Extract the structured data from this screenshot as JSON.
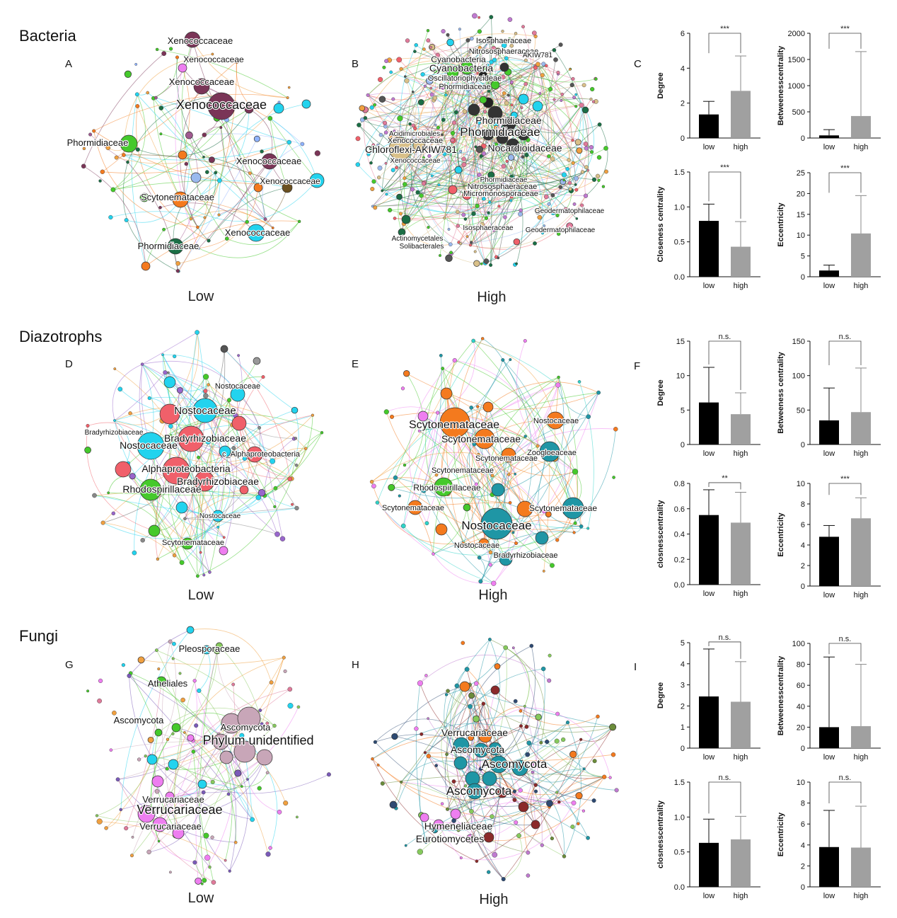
{
  "sections": [
    {
      "id": "bacteria",
      "title": "Bacteria"
    },
    {
      "id": "diazotrophs",
      "title": "Diazotrophs"
    },
    {
      "id": "fungi",
      "title": "Fungi"
    }
  ],
  "colors": {
    "low_bar": "#000000",
    "high_bar": "#a0a0a0",
    "xeno": "#7a3557",
    "cyan": "#22d3ee",
    "orange": "#f47a1e",
    "green": "#45c92b",
    "darkgreen": "#1b6e45",
    "salmon": "#f0606a",
    "teal": "#1f96a5",
    "mauve": "#c8a6b8",
    "violet": "#ee7ef0"
  },
  "networks": [
    {
      "id": "A",
      "letter": "A",
      "caption": "Low",
      "labels": [
        "Xenococcaceae",
        "Xenococcaceae",
        "Xenococcaceae",
        "Xenococcaceae",
        "Phormidiaceae",
        "Xenococcaceae",
        "Xenococcaceae",
        "Scytonemataceae",
        "Xenococcaceae",
        "Phormidiaceae"
      ]
    },
    {
      "id": "B",
      "letter": "B",
      "caption": "High",
      "labels": [
        "Isosphaeraceae",
        "Nitrososphaeraceae",
        "AKIW781",
        "Cyanobacteria",
        "Cyanobacteria",
        "Oscillatoriophycideae",
        "Phormidiaceae",
        "Phormidiaceae",
        "Phormidiaceae",
        "Nocardioidaceae",
        "Acidimicrobiales",
        "Xenococcaceae",
        "Chloroflexi-AKIW781",
        "Xenococcaceae",
        "Phormidiaceae",
        "Nitrososphaeraceae",
        "Micromonosporaceae",
        "Geodermatophilaceae",
        "Geodermatophilaceae",
        "Isosphaeraceae",
        "Actinomycetales",
        "Solibacterales"
      ]
    },
    {
      "id": "D",
      "letter": "D",
      "caption": "Low",
      "labels": [
        "Nostocaceae",
        "Nostocaceae",
        "Bradyrhizobiaceae",
        "Bradyrhizobiaceae",
        "Nostocaceae",
        "c_Alphaproteobacteria",
        "Alphaproteobacteria",
        "Bradyrhizobiaceae",
        "Rhodospirillaceae",
        "Nostocaceae",
        "Scytonemataceae"
      ]
    },
    {
      "id": "E",
      "letter": "E",
      "caption": "High",
      "labels": [
        "Scytonemataceae",
        "Scytonemataceae",
        "Nostocaceae",
        "Scytonemataceae",
        "Zoogloeaceae",
        "Scytonemataceae",
        "Rhodospirillaceae",
        "Scytonemataceae",
        "Scytonemataceae",
        "Nostocaceae",
        "Nostocaceae",
        "Bradyrhizobiaceae"
      ]
    },
    {
      "id": "G",
      "letter": "G",
      "caption": "Low",
      "labels": [
        "Pleosporaceae",
        "Atheliales",
        "Ascomycota",
        "Ascomycota",
        "Phylum unidentified",
        "Verrucariaceae",
        "Verrucariaceae",
        "Verrucariaceae"
      ]
    },
    {
      "id": "H",
      "letter": "H",
      "caption": "High",
      "labels": [
        "Verrucariaceae",
        "Ascomycota",
        "Ascomycota",
        "Ascomycota",
        "Hymeneliaceae",
        "Eurotiomycetes"
      ]
    }
  ],
  "chart_data": [
    {
      "panel": "C",
      "type": "bar",
      "title": "",
      "ylabel": "Degree",
      "categories": [
        "low",
        "high"
      ],
      "values": [
        1.35,
        2.7
      ],
      "errors": [
        0.75,
        2.0
      ],
      "ylim": [
        0,
        6
      ],
      "yticks": [
        "0",
        "2",
        "4",
        "6"
      ],
      "significance": "***"
    },
    {
      "panel": "C",
      "type": "bar",
      "title": "",
      "ylabel": "Betweenesscentrality",
      "categories": [
        "low",
        "high"
      ],
      "values": [
        50,
        420
      ],
      "errors": [
        110,
        1230
      ],
      "ylim": [
        0,
        2000
      ],
      "yticks": [
        "0",
        "500",
        "1000",
        "1500",
        "2000"
      ],
      "significance": "***"
    },
    {
      "panel": "C",
      "type": "bar",
      "title": "",
      "ylabel": "Closeness centrality",
      "categories": [
        "low",
        "high"
      ],
      "values": [
        0.8,
        0.43
      ],
      "errors": [
        0.24,
        0.36
      ],
      "ylim": [
        0,
        1.5
      ],
      "yticks": [
        "0.0",
        "0.5",
        "1.0",
        "1.5"
      ],
      "significance": "***"
    },
    {
      "panel": "C",
      "type": "bar",
      "title": "",
      "ylabel": "Eccentricity",
      "categories": [
        "low",
        "high"
      ],
      "values": [
        1.5,
        10.4
      ],
      "errors": [
        1.3,
        9.1
      ],
      "ylim": [
        0,
        25
      ],
      "yticks": [
        "0",
        "5",
        "10",
        "15",
        "20",
        "25"
      ],
      "significance": "***"
    },
    {
      "panel": "F",
      "type": "bar",
      "title": "",
      "ylabel": "Degree",
      "categories": [
        "low",
        "high"
      ],
      "values": [
        6.1,
        4.4
      ],
      "errors": [
        5.1,
        3.1
      ],
      "ylim": [
        0,
        15
      ],
      "yticks": [
        "0",
        "5",
        "10",
        "15"
      ],
      "significance": "n.s."
    },
    {
      "panel": "F",
      "type": "bar",
      "title": "",
      "ylabel": "Betweeness centrality",
      "categories": [
        "low",
        "high"
      ],
      "values": [
        35,
        47
      ],
      "errors": [
        47,
        64
      ],
      "ylim": [
        0,
        150
      ],
      "yticks": [
        "0",
        "50",
        "100",
        "150"
      ],
      "significance": "n.s."
    },
    {
      "panel": "F",
      "type": "bar",
      "title": "",
      "ylabel": "closnesscentrality",
      "categories": [
        "low",
        "high"
      ],
      "values": [
        0.55,
        0.49
      ],
      "errors": [
        0.2,
        0.24
      ],
      "ylim": [
        0,
        0.8
      ],
      "yticks": [
        "0.0",
        "0.2",
        "0.4",
        "0.6",
        "0.8"
      ],
      "significance": "**"
    },
    {
      "panel": "F",
      "type": "bar",
      "title": "",
      "ylabel": "Eccentricity",
      "categories": [
        "low",
        "high"
      ],
      "values": [
        4.8,
        6.6
      ],
      "errors": [
        1.1,
        2.0
      ],
      "ylim": [
        0,
        10
      ],
      "yticks": [
        "0",
        "2",
        "4",
        "6",
        "8",
        "10"
      ],
      "significance": "***"
    },
    {
      "panel": "I",
      "type": "bar",
      "title": "",
      "ylabel": "Degree",
      "categories": [
        "low",
        "high"
      ],
      "values": [
        2.45,
        2.2
      ],
      "errors": [
        2.25,
        1.9
      ],
      "ylim": [
        0,
        5
      ],
      "yticks": [
        "0",
        "1",
        "2",
        "3",
        "4",
        "5"
      ],
      "significance": "n.s."
    },
    {
      "panel": "I",
      "type": "bar",
      "title": "",
      "ylabel": "Betweenesscentrality",
      "categories": [
        "low",
        "high"
      ],
      "values": [
        20,
        21
      ],
      "errors": [
        67,
        59
      ],
      "ylim": [
        0,
        100
      ],
      "yticks": [
        "0",
        "20",
        "40",
        "60",
        "80",
        "100"
      ],
      "significance": "n.s."
    },
    {
      "panel": "I",
      "type": "bar",
      "title": "",
      "ylabel": "closnesscentrality",
      "categories": [
        "low",
        "high"
      ],
      "values": [
        0.63,
        0.68
      ],
      "errors": [
        0.34,
        0.33
      ],
      "ylim": [
        0,
        1.5
      ],
      "yticks": [
        "0.0",
        "0.5",
        "1.0",
        "1.5"
      ],
      "significance": "n.s."
    },
    {
      "panel": "I",
      "type": "bar",
      "title": "",
      "ylabel": "Eccentricity",
      "categories": [
        "low",
        "high"
      ],
      "values": [
        3.8,
        3.75
      ],
      "errors": [
        3.5,
        3.95
      ],
      "ylim": [
        0,
        10
      ],
      "yticks": [
        "0",
        "2",
        "4",
        "6",
        "8",
        "10"
      ],
      "significance": "n.s."
    }
  ],
  "bar_panel_letters": [
    "C",
    "F",
    "I"
  ]
}
